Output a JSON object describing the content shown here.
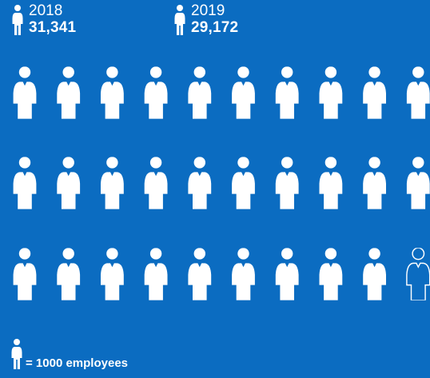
{
  "stats": [
    {
      "year": "2018",
      "value": "31,341"
    },
    {
      "year": "2019",
      "value": "29,172"
    }
  ],
  "legend": {
    "text": "= 1000 employees"
  },
  "chart_data": {
    "type": "pictogram",
    "unit": "1000 employees",
    "categories": [
      "2018",
      "2019"
    ],
    "values": [
      31341,
      29172
    ],
    "icons_drawn": 30,
    "filled_icons": 29,
    "outlined_icons": 1,
    "colors": {
      "background": "#0B6CC1",
      "icon": "#FFFFFF"
    }
  }
}
